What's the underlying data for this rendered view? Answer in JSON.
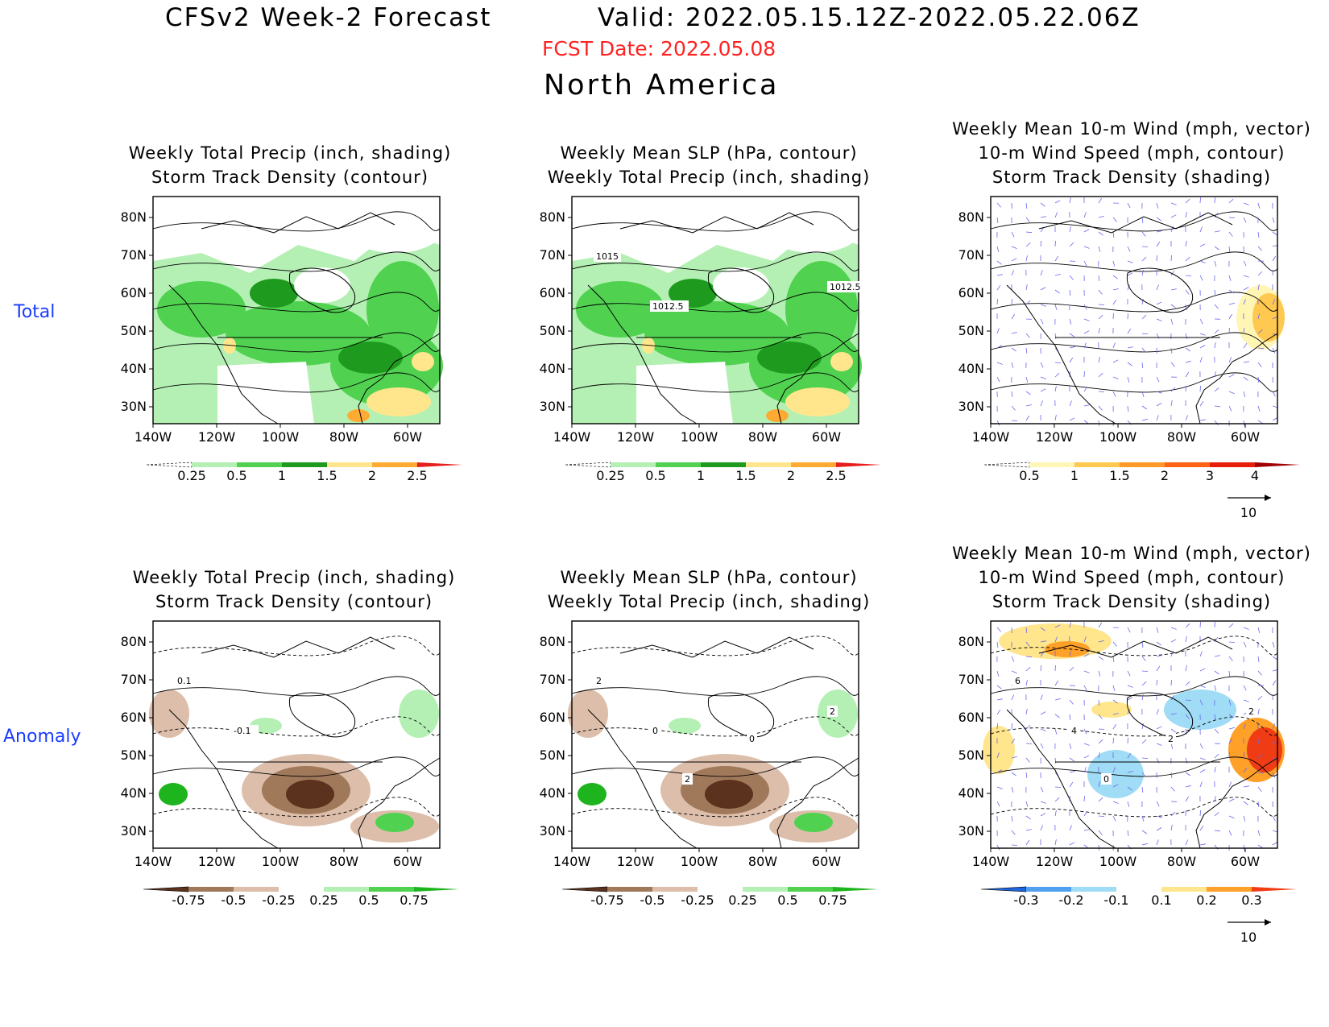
{
  "header": {
    "model": "CFSv2 Week-2 Forecast",
    "valid": "Valid: 2022.05.15.12Z-2022.05.22.06Z",
    "fcst_date": "FCST Date: 2022.05.08",
    "region": "North America"
  },
  "rows": [
    {
      "label": "Total"
    },
    {
      "label": "Anomaly"
    }
  ],
  "axes": {
    "lat_labels": [
      "80N",
      "70N",
      "60N",
      "50N",
      "40N",
      "30N"
    ],
    "lon_labels": [
      "140W",
      "120W",
      "100W",
      "80W",
      "60W"
    ]
  },
  "panels": [
    {
      "title1": "Weekly Total Precip (inch, shading)",
      "title2": "Storm Track Density (contour)",
      "title3": ""
    },
    {
      "title1": "Weekly Mean SLP (hPa, contour)",
      "title2": "Weekly Total Precip (inch, shading)",
      "title3": "",
      "labels": [
        "1015",
        "1012.5",
        "1012.5"
      ]
    },
    {
      "title1": "Weekly Mean 10-m Wind (mph, vector)",
      "title2": "10-m Wind Speed (mph, contour)",
      "title3": "Storm Track Density (shading)"
    },
    {
      "title1": "Weekly Total Precip (inch, shading)",
      "title2": "Storm Track Density (contour)",
      "title3": "",
      "labels": [
        "0.1",
        "-0.1"
      ]
    },
    {
      "title1": "Weekly Mean SLP (hPa, contour)",
      "title2": "Weekly Total Precip (inch, shading)",
      "title3": "",
      "labels": [
        "2",
        "0",
        "2",
        "2",
        "0"
      ]
    },
    {
      "title1": "Weekly Mean 10-m Wind (mph, vector)",
      "title2": "10-m Wind Speed (mph, contour)",
      "title3": "Storm Track Density (shading)",
      "labels": [
        "6",
        "4",
        "2",
        "0",
        "2"
      ]
    }
  ],
  "colorbars": {
    "precip_total": {
      "ticks": [
        "0.25",
        "0.5",
        "1",
        "1.5",
        "2",
        "2.5"
      ],
      "colors": [
        "#ffffff",
        "#b4f0b4",
        "#50d250",
        "#1e9b1e",
        "#ffe68c",
        "#ffaa32",
        "#e61e1e"
      ]
    },
    "storm_total": {
      "ticks": [
        "0.5",
        "1",
        "1.5",
        "2",
        "3",
        "4"
      ],
      "colors": [
        "#ffffff",
        "#fff5b4",
        "#ffc850",
        "#ff9a28",
        "#ff6414",
        "#e61e0a",
        "#a00000"
      ]
    },
    "precip_anom": {
      "ticks": [
        "-0.75",
        "-0.5",
        "-0.25",
        "0.25",
        "0.5",
        "0.75"
      ],
      "colors": [
        "#5a321e",
        "#a0785a",
        "#dcbeaa",
        "#ffffff",
        "#b4f0b4",
        "#50d250",
        "#1eb41e"
      ]
    },
    "storm_anom": {
      "ticks": [
        "-0.3",
        "-0.2",
        "-0.1",
        "0.1",
        "0.2",
        "0.3"
      ],
      "colors": [
        "#1e64dc",
        "#50a0f0",
        "#a0dcf5",
        "#ffffff",
        "#ffe68c",
        "#ffa028",
        "#f03c14"
      ]
    }
  },
  "vector_key": {
    "value": "10"
  }
}
